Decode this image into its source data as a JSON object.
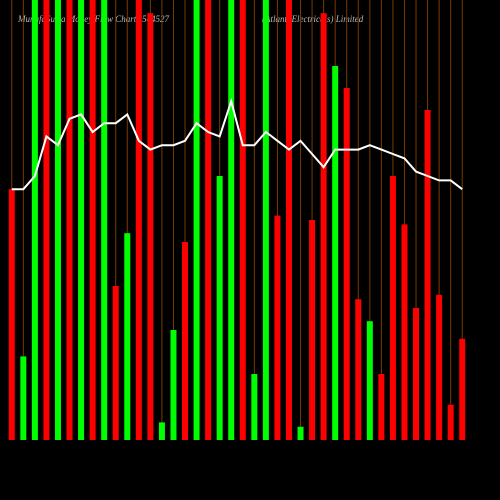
{
  "chart_data": {
    "type": "bar-line",
    "title": "MunafaSutra Money Flow Charts 544527",
    "subtitle": "(AtlantaElectricals) Limited",
    "categories": [
      null,
      null,
      null,
      null,
      null,
      null,
      null,
      null,
      null,
      null,
      null,
      null,
      null,
      null,
      null,
      null,
      null,
      null,
      null,
      null,
      null,
      null,
      null,
      null,
      null,
      null,
      null,
      null,
      null,
      null,
      null,
      null,
      null,
      null,
      null,
      null,
      null,
      null,
      null,
      null
    ],
    "bars": {
      "values": [
        57,
        19,
        100,
        100,
        100,
        100,
        100,
        100,
        100,
        35,
        47,
        100,
        97,
        4,
        25,
        45,
        100,
        100,
        60,
        100,
        100,
        15,
        100,
        51,
        100,
        3,
        50,
        97,
        85,
        80,
        32,
        27,
        15,
        60,
        49,
        30,
        75,
        33,
        8,
        23
      ],
      "colors": [
        "#ff0000",
        "#00ff00",
        "#00ff00",
        "#ff0000",
        "#00ff00",
        "#ff0000",
        "#00ff00",
        "#ff0000",
        "#00ff00",
        "#ff0000",
        "#00ff00",
        "#ff0000",
        "#ff0000",
        "#00ff00",
        "#00ff00",
        "#ff0000",
        "#00ff00",
        "#ff0000",
        "#00ff00",
        "#00ff00",
        "#ff0000",
        "#00ff00",
        "#00ff00",
        "#ff0000",
        "#ff0000",
        "#00ff00",
        "#ff0000",
        "#ff0000",
        "#00ff00",
        "#ff0000",
        "#ff0000",
        "#00ff00",
        "#ff0000",
        "#ff0000",
        "#ff0000",
        "#ff0000",
        "#ff0000",
        "#ff0000",
        "#ff0000",
        "#ff0000"
      ]
    },
    "line": {
      "color": "#ffffff",
      "values": [
        57,
        57,
        60,
        69,
        67,
        73,
        74,
        70,
        72,
        72,
        74,
        68,
        66,
        67,
        67,
        68,
        72,
        70,
        69,
        77,
        67,
        67,
        70,
        68,
        66,
        68,
        65,
        62,
        66,
        66,
        66,
        67,
        66,
        65,
        64,
        61,
        60,
        59,
        59,
        57
      ]
    },
    "ylim": [
      0,
      100
    ],
    "grid_color": "#7a3a00"
  }
}
